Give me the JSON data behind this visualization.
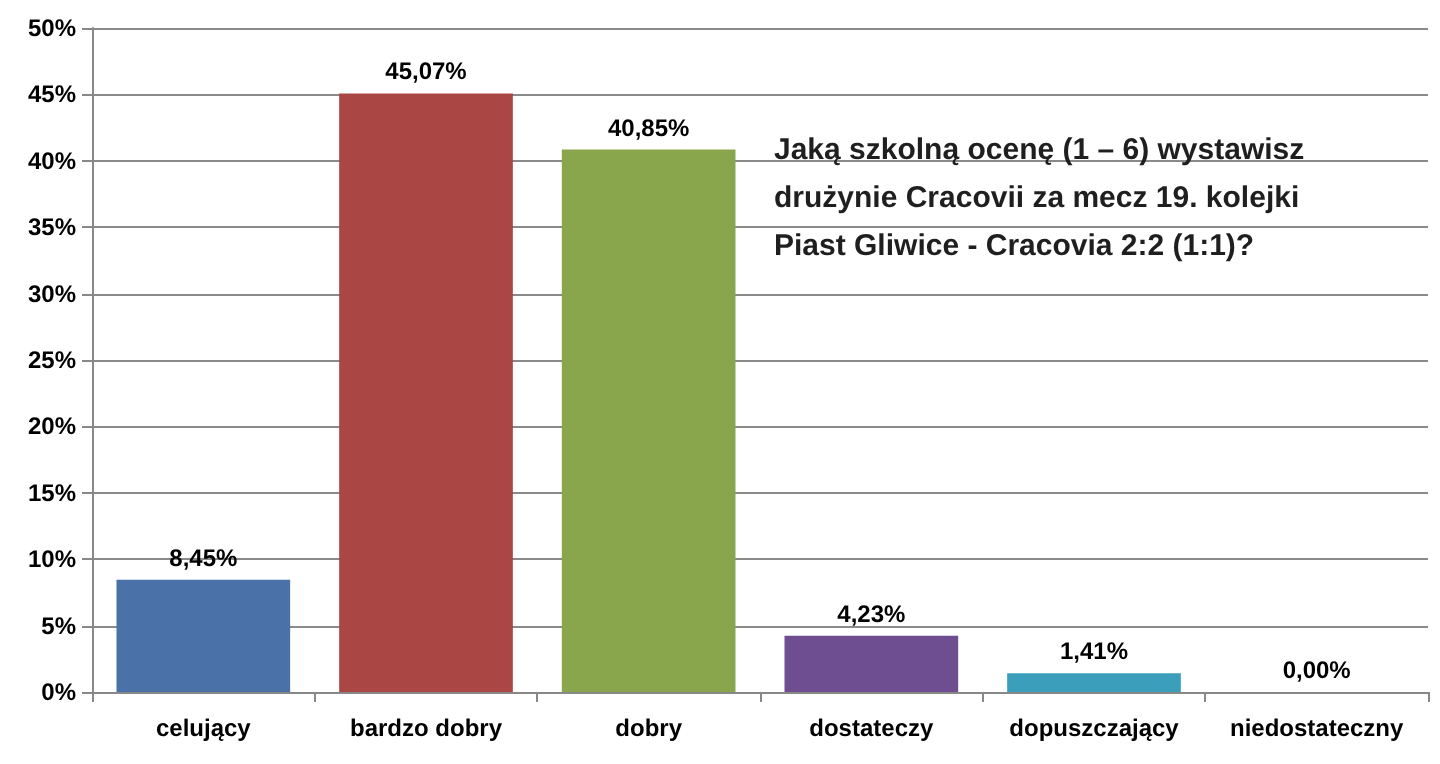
{
  "chart_data": {
    "type": "bar",
    "title": "Jaką szkolną ocenę (1 – 6) wystawisz drużynie Cracovii za mecz 19. kolejki Piast Gliwice - Cracovia 2:2 (1:1)?",
    "categories": [
      "celujący",
      "bardzo dobry",
      "dobry",
      "dostateczy",
      "dopuszczający",
      "niedostateczny"
    ],
    "values": [
      8.45,
      45.07,
      40.85,
      4.23,
      1.41,
      0
    ],
    "colors": [
      "#4a72a8",
      "#aa4644",
      "#8aa64c",
      "#6e4d91",
      "#3b9fbb",
      "#f79646"
    ],
    "value_labels": [
      "8,45%",
      "45,07%",
      "40,85%",
      "4,23%",
      "1,41%",
      "0,00%"
    ],
    "ylim": [
      0,
      50
    ],
    "yticks": [
      {
        "value": 0,
        "label": "0%"
      },
      {
        "value": 5,
        "label": "5%"
      },
      {
        "value": 10,
        "label": "10%"
      },
      {
        "value": 15,
        "label": "15%"
      },
      {
        "value": 20,
        "label": "20%"
      },
      {
        "value": 25,
        "label": "25%"
      },
      {
        "value": 30,
        "label": "30%"
      },
      {
        "value": 35,
        "label": "35%"
      },
      {
        "value": 40,
        "label": "40%"
      },
      {
        "value": 45,
        "label": "45%"
      },
      {
        "value": 50,
        "label": "50%"
      }
    ],
    "grid": "y"
  }
}
